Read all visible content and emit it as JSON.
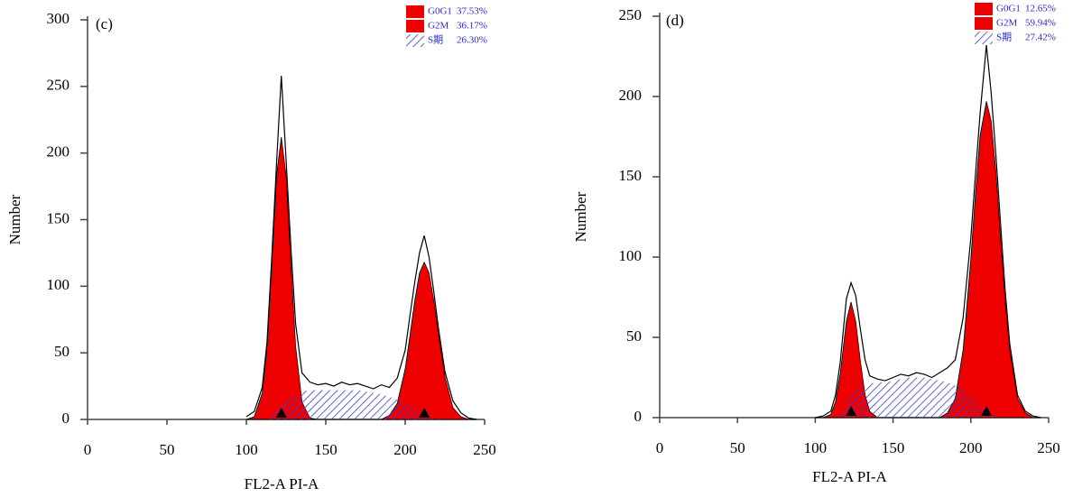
{
  "chart_data": [
    {
      "type": "area",
      "panel_label": "(c)",
      "ylabel": "Number",
      "xlabel": "FL2-A PI-A",
      "xlim": [
        0,
        250
      ],
      "ylim": [
        0,
        300
      ],
      "xticks": [
        0,
        50,
        100,
        150,
        200,
        250
      ],
      "yticks": [
        0,
        50,
        100,
        150,
        200,
        250,
        300
      ],
      "markers": [
        122,
        212
      ],
      "x": [
        100,
        105,
        110,
        113,
        116,
        119,
        122,
        125,
        128,
        131,
        135,
        140,
        145,
        150,
        155,
        160,
        165,
        170,
        175,
        180,
        185,
        190,
        195,
        200,
        203,
        206,
        209,
        212,
        215,
        218,
        221,
        225,
        230,
        235,
        240,
        245
      ],
      "series": [
        {
          "name": "G0G1",
          "share_label": "37.53%",
          "color": "#ee0000",
          "hatch": false,
          "values": [
            0,
            2,
            20,
            55,
            117,
            183,
            212,
            183,
            117,
            55,
            13,
            1,
            0,
            0,
            0,
            0,
            0,
            0,
            0,
            0,
            0,
            0,
            0,
            0,
            0,
            0,
            0,
            0,
            0,
            0,
            0,
            0,
            0,
            0,
            0,
            0
          ]
        },
        {
          "name": "G2M",
          "share_label": "36.17%",
          "color": "#ee0000",
          "hatch": false,
          "values": [
            0,
            0,
            0,
            0,
            0,
            0,
            0,
            0,
            0,
            0,
            0,
            0,
            0,
            0,
            0,
            0,
            0,
            0,
            0,
            0,
            0,
            3,
            12,
            38,
            63,
            89,
            110,
            118,
            110,
            89,
            63,
            32,
            9,
            2,
            0,
            0
          ]
        },
        {
          "name": "S期",
          "share_label": "26.30%",
          "color": "#3a3fd0",
          "hatch": true,
          "values": [
            0,
            0,
            0,
            1,
            3,
            6,
            9,
            13,
            16,
            19,
            21,
            22,
            22,
            22,
            22,
            22,
            22,
            22,
            21,
            20,
            19,
            17,
            15,
            12,
            10,
            8,
            6,
            4,
            3,
            2,
            1,
            0,
            0,
            0,
            0,
            0
          ]
        },
        {
          "color": "#000000",
          "hatch": false,
          "values": [
            2,
            6,
            24,
            58,
            122,
            192,
            258,
            195,
            130,
            72,
            35,
            28,
            26,
            27,
            25,
            28,
            26,
            27,
            25,
            23,
            26,
            24,
            31,
            52,
            78,
            103,
            125,
            138,
            122,
            96,
            68,
            36,
            14,
            5,
            1,
            0
          ]
        }
      ]
    },
    {
      "type": "area",
      "panel_label": "(d)",
      "ylabel": "Number",
      "xlabel": "FL2-A PI-A",
      "xlim": [
        0,
        250
      ],
      "ylim": [
        0,
        250
      ],
      "xticks": [
        0,
        50,
        100,
        150,
        200,
        250
      ],
      "yticks": [
        0,
        50,
        100,
        150,
        200,
        250
      ],
      "markers": [
        123,
        210
      ],
      "x": [
        100,
        105,
        110,
        113,
        116,
        120,
        123,
        126,
        129,
        132,
        135,
        140,
        145,
        150,
        155,
        160,
        165,
        170,
        175,
        180,
        185,
        190,
        195,
        200,
        203,
        206,
        210,
        213,
        216,
        219,
        222,
        225,
        230,
        235,
        240,
        245
      ],
      "series": [
        {
          "name": "G0G1",
          "share_label": "12.65%",
          "color": "#ee0000",
          "hatch": false,
          "values": [
            0,
            0,
            2,
            10,
            27,
            60,
            72,
            60,
            35,
            14,
            4,
            0,
            0,
            0,
            0,
            0,
            0,
            0,
            0,
            0,
            0,
            0,
            0,
            0,
            0,
            0,
            0,
            0,
            0,
            0,
            0,
            0,
            0,
            0,
            0,
            0
          ]
        },
        {
          "name": "G2M",
          "share_label": "59.94%",
          "color": "#ee0000",
          "hatch": false,
          "values": [
            0,
            0,
            0,
            0,
            0,
            0,
            0,
            0,
            0,
            0,
            0,
            0,
            0,
            0,
            0,
            0,
            0,
            0,
            0,
            0,
            3,
            12,
            42,
            99,
            140,
            176,
            197,
            185,
            154,
            113,
            73,
            42,
            12,
            3,
            0,
            0
          ]
        },
        {
          "name": "S期",
          "share_label": "27.42%",
          "color": "#3a3fd0",
          "hatch": true,
          "values": [
            0,
            0,
            0,
            1,
            4,
            10,
            14,
            17,
            19,
            20,
            21,
            22,
            22,
            23,
            24,
            25,
            25,
            25,
            24,
            23,
            22,
            20,
            17,
            13,
            10,
            7,
            4,
            2,
            1,
            0,
            0,
            0,
            0,
            0,
            0,
            0
          ]
        },
        {
          "color": "#000000",
          "hatch": false,
          "values": [
            0,
            1,
            4,
            14,
            34,
            74,
            84,
            76,
            55,
            36,
            26,
            24,
            23,
            25,
            27,
            26,
            28,
            27,
            25,
            28,
            31,
            36,
            62,
            112,
            152,
            190,
            232,
            203,
            165,
            122,
            80,
            46,
            14,
            4,
            1,
            0
          ]
        }
      ]
    }
  ]
}
